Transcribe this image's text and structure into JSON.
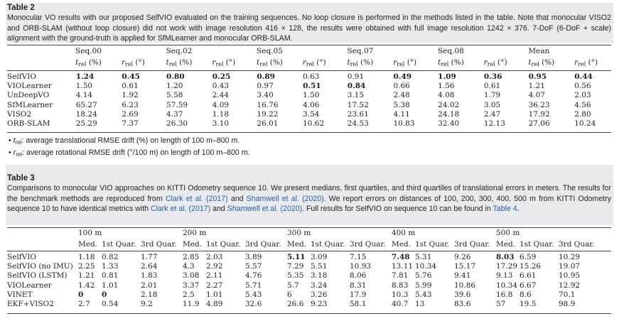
{
  "table2": {
    "title": "Table 2",
    "caption": "Monocular VO results with our proposed SelfVIO evaluated on the training sequences. No loop closure is performed in the methods listed in the table. Note that monocular VISO2 and ORB-SLAM (without loop closure) did not work with image resolution 416 × 128, the results were obtained with full image resolution 1242 × 376. 7-DoF (6-DoF + scale) alignment with the ground-truth is applied for SfMLearner and monocular ORB-SLAM.",
    "groups": [
      "Seq.00",
      "Seq.02",
      "Seq.05",
      "Seq.07",
      "Seq.08",
      "Mean"
    ],
    "t_label": "t",
    "t_sub": "rel",
    "t_unit": " (%)",
    "r_label": "r",
    "r_sub": "rel",
    "r_unit": " (°)",
    "rows": [
      {
        "method": "SelfVIO",
        "values": [
          "1.24",
          "0.45",
          "0.80",
          "0.25",
          "0.89",
          "0.63",
          "0.91",
          "0.49",
          "1.09",
          "0.36",
          "0.95",
          "0.44"
        ],
        "bold": [
          0,
          1,
          2,
          3,
          4,
          7,
          8,
          9,
          10,
          11
        ]
      },
      {
        "method": "VIOLearner",
        "values": [
          "1.50",
          "0.61",
          "1.20",
          "0.43",
          "0.97",
          "0.51",
          "0.84",
          "0.66",
          "1.56",
          "0.61",
          "1.21",
          "0.56"
        ],
        "bold": [
          5,
          6
        ]
      },
      {
        "method": "UnDeepVO",
        "values": [
          "4.14",
          "1.92",
          "5.58",
          "2.44",
          "3.40",
          "1.50",
          "3.15",
          "2.48",
          "4.08",
          "1.79",
          "4.07",
          "2.03"
        ],
        "bold": []
      },
      {
        "method": "SfMLearner",
        "values": [
          "65.27",
          "6.23",
          "57.59",
          "4.09",
          "16.76",
          "4.06",
          "17.52",
          "5.38",
          "24.02",
          "3.05",
          "36.23",
          "4.56"
        ],
        "bold": []
      },
      {
        "method": "VISO2",
        "values": [
          "18.24",
          "2.69",
          "4.37",
          "1.18",
          "19.22",
          "3.54",
          "23.61",
          "4.11",
          "24.18",
          "2.47",
          "17.92",
          "2.80"
        ],
        "bold": []
      },
      {
        "method": "ORB-SLAM",
        "values": [
          "25.29",
          "7.37",
          "26.30",
          "3.10",
          "26.01",
          "10.62",
          "24.53",
          "10.83",
          "32.40",
          "12.13",
          "27.06",
          "10.24"
        ],
        "bold": []
      }
    ],
    "notes": [
      {
        "sym": "t",
        "sub": "rel",
        "text": ": average translational RMSE drift (%) on length of 100 m–800 m."
      },
      {
        "sym": "r",
        "sub": "rel",
        "text": ": average rotational RMSE drift (°/100 m) on length of 100 m–800 m."
      }
    ]
  },
  "table3": {
    "title": "Table 3",
    "caption_parts": {
      "p1": "Comparisons to monocular VIO approaches on KITTI Odometry sequence 10. We present medians, first quartiles, and third quartiles of translational errors in meters. The results for the benchmark methods are reproduced from ",
      "c1": "Clark et al. (2017)",
      "p2": " and ",
      "c2": "Shamwell et al. (2020)",
      "p3": ". We report errors on distances of 100, 200, 300, 400, 500 m from KITTI Odometry sequence 10 to have identical metrics with ",
      "c3": "Clark et al. (2017)",
      "p4": " and ",
      "c4": "Shamwell et al. (2020)",
      "p5": ". Full results for SelfVIO on sequence 10 can be found in ",
      "c5": "Table 4",
      "p6": "."
    },
    "groups": [
      "100 m",
      "200 m",
      "300 m",
      "400 m",
      "500 m"
    ],
    "subheads": [
      "Med.",
      "1st Quar.",
      "3rd Quar."
    ],
    "rows": [
      {
        "method": "SelfVIO",
        "values": [
          "1.18",
          "0.82",
          "1.77",
          "2.85",
          "2.03",
          "3.89",
          "5.11",
          "3.09",
          "7.15",
          "7.48",
          "5.31",
          "9.26",
          "8.03",
          "6.59",
          "10.29"
        ],
        "bold": [
          6,
          9,
          12
        ]
      },
      {
        "method": "SelfVIO (no IMU)",
        "values": [
          "2.25",
          "1.33",
          "2.64",
          "4.3",
          "2.92",
          "5.57",
          "7.29",
          "5.51",
          "10.93",
          "13.11",
          "10.34",
          "15.17",
          "17.29",
          "15.26",
          "19.07"
        ],
        "bold": []
      },
      {
        "method": "SelfVIO (LSTM)",
        "values": [
          "1.21",
          "0.81",
          "1.83",
          "3.08",
          "2.11",
          "4.76",
          "5.35",
          "3.18",
          "8.06",
          "7.81",
          "5.76",
          "9.41",
          "9.13",
          "6.61",
          "10.95"
        ],
        "bold": []
      },
      {
        "method": "VIOLearner",
        "values": [
          "1.42",
          "1.01",
          "2.01",
          "3.37",
          "2.27",
          "5.71",
          "5.7",
          "3.24",
          "8.31",
          "8.83",
          "5.99",
          "10.86",
          "10.34",
          "6.67",
          "12.92"
        ],
        "bold": []
      },
      {
        "method": "VINET",
        "values": [
          "0",
          "0",
          "2.18",
          "2.5",
          "1.01",
          "5.43",
          "6",
          "3.26",
          "17.9",
          "10.3",
          "5.43",
          "39.6",
          "16.8",
          "8.6",
          "70.1"
        ],
        "bold": [
          0,
          1
        ]
      },
      {
        "method": "EKF+VISO2",
        "values": [
          "2.7",
          "0.54",
          "9.2",
          "11.9",
          "4.89",
          "32.6",
          "26.6",
          "9.23",
          "58.1",
          "40.7",
          "13",
          "83.6",
          "57",
          "19.5",
          "98.9"
        ],
        "bold": []
      }
    ]
  }
}
